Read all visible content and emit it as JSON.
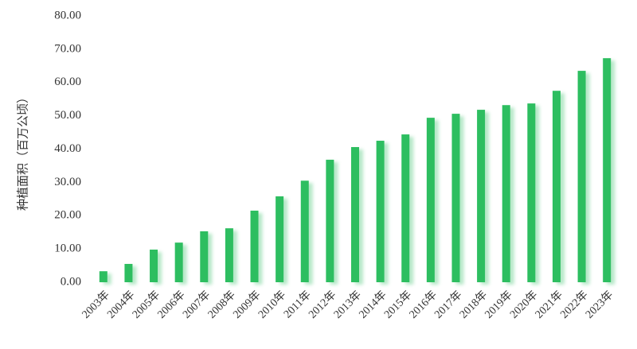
{
  "chart_data": {
    "type": "bar",
    "y_label": "种植面积（百万公顷）",
    "categories": [
      "2003年",
      "2004年",
      "2005年",
      "2006年",
      "2007年",
      "2008年",
      "2009年",
      "2010年",
      "2011年",
      "2012年",
      "2013年",
      "2014年",
      "2015年",
      "2016年",
      "2017年",
      "2018年",
      "2019年",
      "2020年",
      "2021年",
      "2022年",
      "2023年"
    ],
    "values": [
      3.3,
      5.5,
      9.8,
      11.9,
      15.3,
      16.2,
      21.5,
      25.8,
      30.5,
      36.8,
      40.6,
      42.5,
      44.4,
      49.4,
      50.6,
      51.8,
      53.2,
      53.7,
      57.5,
      63.5,
      67.3
    ],
    "color": "#2dbe60",
    "ylim": [
      0,
      80
    ],
    "yticks": [
      {
        "value": 0,
        "label": "0.00"
      },
      {
        "value": 10,
        "label": "10.00"
      },
      {
        "value": 20,
        "label": "20.00"
      },
      {
        "value": 30,
        "label": "30.00"
      },
      {
        "value": 40,
        "label": "40.00"
      },
      {
        "value": 50,
        "label": "50.00"
      },
      {
        "value": 60,
        "label": "60.00"
      },
      {
        "value": 70,
        "label": "70.00"
      },
      {
        "value": 80,
        "label": "80.00"
      }
    ],
    "grid": false
  }
}
